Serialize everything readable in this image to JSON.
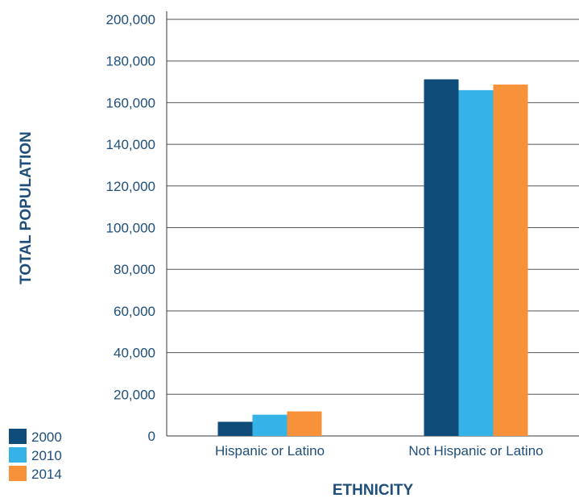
{
  "chart_data": {
    "type": "bar",
    "categories": [
      "Hispanic or Latino",
      "Not Hispanic or Latino"
    ],
    "series": [
      {
        "name": "2000",
        "color": "#0f4c7a",
        "values": [
          6800,
          171200
        ]
      },
      {
        "name": "2010",
        "color": "#35b3e6",
        "values": [
          10200,
          166000
        ]
      },
      {
        "name": "2014",
        "color": "#f7923a",
        "values": [
          11800,
          168700
        ]
      }
    ],
    "title": "",
    "xlabel": "ETHNICITY",
    "ylabel": "TOTAL POPULATION",
    "ylim": [
      0,
      200000
    ],
    "yticks": [
      "0",
      "20,000",
      "40,000",
      "60,000",
      "80,000",
      "100,000",
      "120,000",
      "140,000",
      "160,000",
      "180,000",
      "200,000"
    ],
    "grid": true,
    "legend": "bottom-left"
  }
}
